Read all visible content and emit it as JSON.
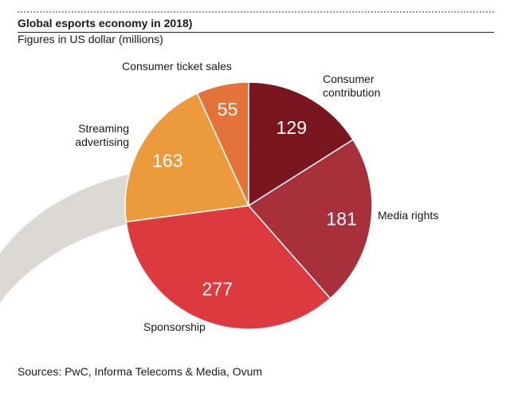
{
  "header": {
    "title": "Global esports economy in 2018)",
    "subtitle": "Figures in US dollar (millions)"
  },
  "chart_data": {
    "type": "pie",
    "title": "Global esports economy in 2018)",
    "subtitle": "Figures in US dollar (millions)",
    "unit": "US dollar (millions)",
    "slices": [
      {
        "label": "Consumer contribution",
        "label_lines": [
          "Consumer",
          "contribution"
        ],
        "value": 129,
        "color": "#7a1620"
      },
      {
        "label": "Media rights",
        "label_lines": [
          "Media rights"
        ],
        "value": 181,
        "color": "#a8303a"
      },
      {
        "label": "Sponsorship",
        "label_lines": [
          "Sponsorship"
        ],
        "value": 277,
        "color": "#dc3a3f"
      },
      {
        "label": "Streaming advertising",
        "label_lines": [
          "Streaming",
          "advertising"
        ],
        "value": 163,
        "color": "#eb9a3c"
      },
      {
        "label": "Consumer ticket sales",
        "label_lines": [
          "Consumer ticket sales"
        ],
        "value": 55,
        "color": "#e4733a"
      }
    ]
  },
  "footer": {
    "source": "Sources: PwC, Informa Telecoms & Media, Ovum"
  }
}
